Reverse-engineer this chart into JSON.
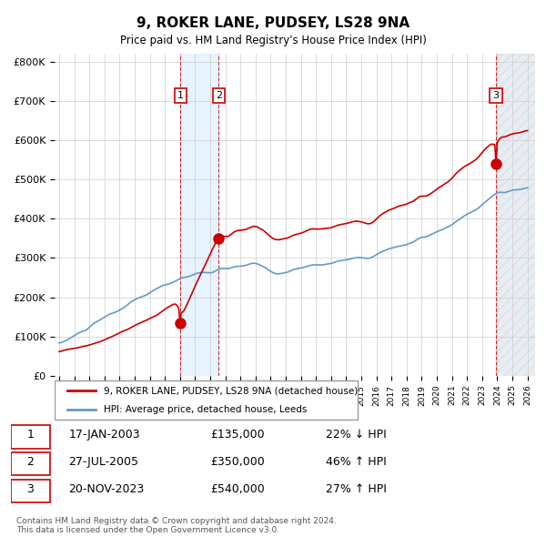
{
  "title": "9, ROKER LANE, PUDSEY, LS28 9NA",
  "subtitle": "Price paid vs. HM Land Registry's House Price Index (HPI)",
  "ylabel": "",
  "ylim": [
    0,
    820000
  ],
  "yticks": [
    0,
    100000,
    200000,
    300000,
    400000,
    500000,
    600000,
    700000,
    800000
  ],
  "ytick_labels": [
    "£0",
    "£100K",
    "£200K",
    "£300K",
    "£400K",
    "£500K",
    "£600K",
    "£700K",
    "£800K"
  ],
  "x_start_year": 1995,
  "x_end_year": 2026,
  "red_line_color": "#cc0000",
  "blue_line_color": "#6699cc",
  "marker_color": "#cc0000",
  "vline_color": "#cc0000",
  "shade_color": "#ddeeff",
  "hatch_color": "#aabbcc",
  "grid_color": "#cccccc",
  "background_color": "#ffffff",
  "sale1_year": 2003.04,
  "sale1_price": 135000,
  "sale1_label": "1",
  "sale2_year": 2005.57,
  "sale2_price": 350000,
  "sale2_label": "2",
  "sale3_year": 2023.9,
  "sale3_price": 540000,
  "sale3_label": "3",
  "legend_entries": [
    "9, ROKER LANE, PUDSEY, LS28 9NA (detached house)",
    "HPI: Average price, detached house, Leeds"
  ],
  "table_data": [
    [
      "1",
      "17-JAN-2003",
      "£135,000",
      "22% ↓ HPI"
    ],
    [
      "2",
      "27-JUL-2005",
      "£350,000",
      "46% ↑ HPI"
    ],
    [
      "3",
      "20-NOV-2023",
      "£540,000",
      "27% ↑ HPI"
    ]
  ],
  "footnote": "Contains HM Land Registry data © Crown copyright and database right 2024.\nThis data is licensed under the Open Government Licence v3.0."
}
